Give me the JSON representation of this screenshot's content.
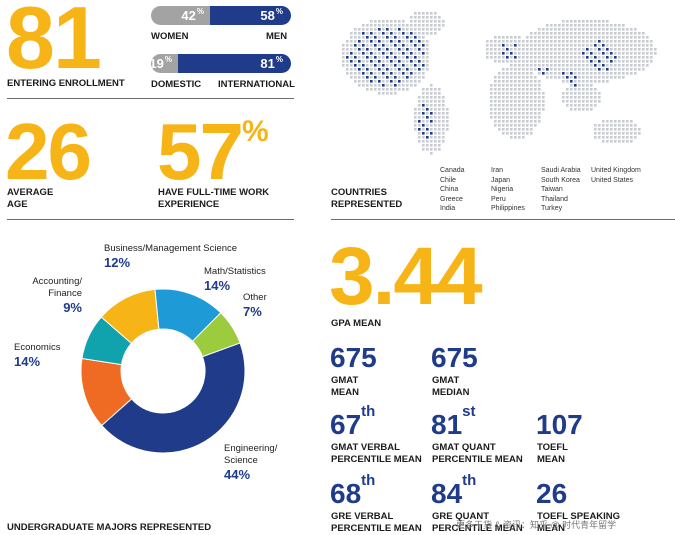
{
  "enrollment": {
    "value": "81",
    "label": "ENTERING ENROLLMENT"
  },
  "gender": {
    "women_pct": 42,
    "men_pct": 58,
    "women_value": "42",
    "men_value": "58",
    "pct_sign": "%",
    "women_label": "WOMEN",
    "men_label": "MEN"
  },
  "origin": {
    "domestic_pct": 19,
    "international_pct": 81,
    "domestic_value": "19",
    "international_value": "81",
    "pct_sign": "%",
    "domestic_label": "DOMESTIC",
    "international_label": "INTERNATIONAL"
  },
  "age": {
    "value": "26",
    "label_line1": "AVERAGE",
    "label_line2": "AGE"
  },
  "experience": {
    "value": "57",
    "pct_sign": "%",
    "label_line1": "HAVE FULL-TIME WORK",
    "label_line2": "EXPERIENCE"
  },
  "countries": {
    "label_line1": "COUNTRIES",
    "label_line2": "REPRESENTED",
    "columns": [
      [
        "Canada",
        "Chile",
        "China",
        "Greece",
        "India"
      ],
      [
        "Iran",
        "Japan",
        "Nigeria",
        "Peru",
        "Philippines"
      ],
      [
        "Saudi Arabia",
        "South Korea",
        "Taiwan",
        "Thailand",
        "Turkey"
      ],
      [
        "United Kingdom",
        "United States"
      ]
    ]
  },
  "majors": {
    "title": "UNDERGRADUATE MAJORS REPRESENTED",
    "business_line1": "Business/Management Science",
    "math_line1": "Math/Statistics",
    "other_line1": "Other",
    "accounting_line1": "Accounting/",
    "accounting_line2": "Finance",
    "economics_line1": "Economics",
    "engineering_line1": "Engineering/",
    "engineering_line2": "Science",
    "business_pct": "12%",
    "math_pct": "14%",
    "other_pct": "7%",
    "accounting_pct": "9%",
    "economics_pct": "14%",
    "engineering_pct": "44%"
  },
  "chart_data": {
    "type": "pie",
    "title": "UNDERGRADUATE MAJORS REPRESENTED",
    "categories": [
      "Engineering/Science",
      "Economics",
      "Accounting/Finance",
      "Business/Management Science",
      "Math/Statistics",
      "Other"
    ],
    "values": [
      44,
      14,
      9,
      12,
      14,
      7
    ],
    "colors": [
      "#1f3b8a",
      "#ef6b23",
      "#11a3ad",
      "#f6b417",
      "#1e9ad6",
      "#9ccc3d"
    ],
    "donut": true
  },
  "gpa": {
    "value": "3.44",
    "label": "GPA MEAN"
  },
  "scores": {
    "gmat_mean": {
      "value": "675",
      "line1": "GMAT",
      "line2": "MEAN"
    },
    "gmat_median": {
      "value": "675",
      "line1": "GMAT",
      "line2": "MEDIAN"
    },
    "gmat_verbal": {
      "value": "67",
      "suffix": "th",
      "line1": "GMAT VERBAL",
      "line2": "PERCENTILE MEAN"
    },
    "gmat_quant": {
      "value": "81",
      "suffix": "st",
      "line1": "GMAT QUANT",
      "line2": "PERCENTILE MEAN"
    },
    "toefl": {
      "value": "107",
      "line1": "TOEFL",
      "line2": "MEAN"
    },
    "gre_verbal": {
      "value": "68",
      "suffix": "th",
      "line1": "GRE VERBAL",
      "line2": "PERCENTILE MEAN"
    },
    "gre_quant": {
      "value": "84",
      "suffix": "th",
      "line1": "GRE QUANT",
      "line2": "PERCENTILE MEAN"
    },
    "toefl_speaking": {
      "value": "26",
      "line1": "TOEFL SPEAKING",
      "line2": "MEAN"
    }
  },
  "watermark": "更多干货 & 资讯：知乎 @ 时代青年留学"
}
